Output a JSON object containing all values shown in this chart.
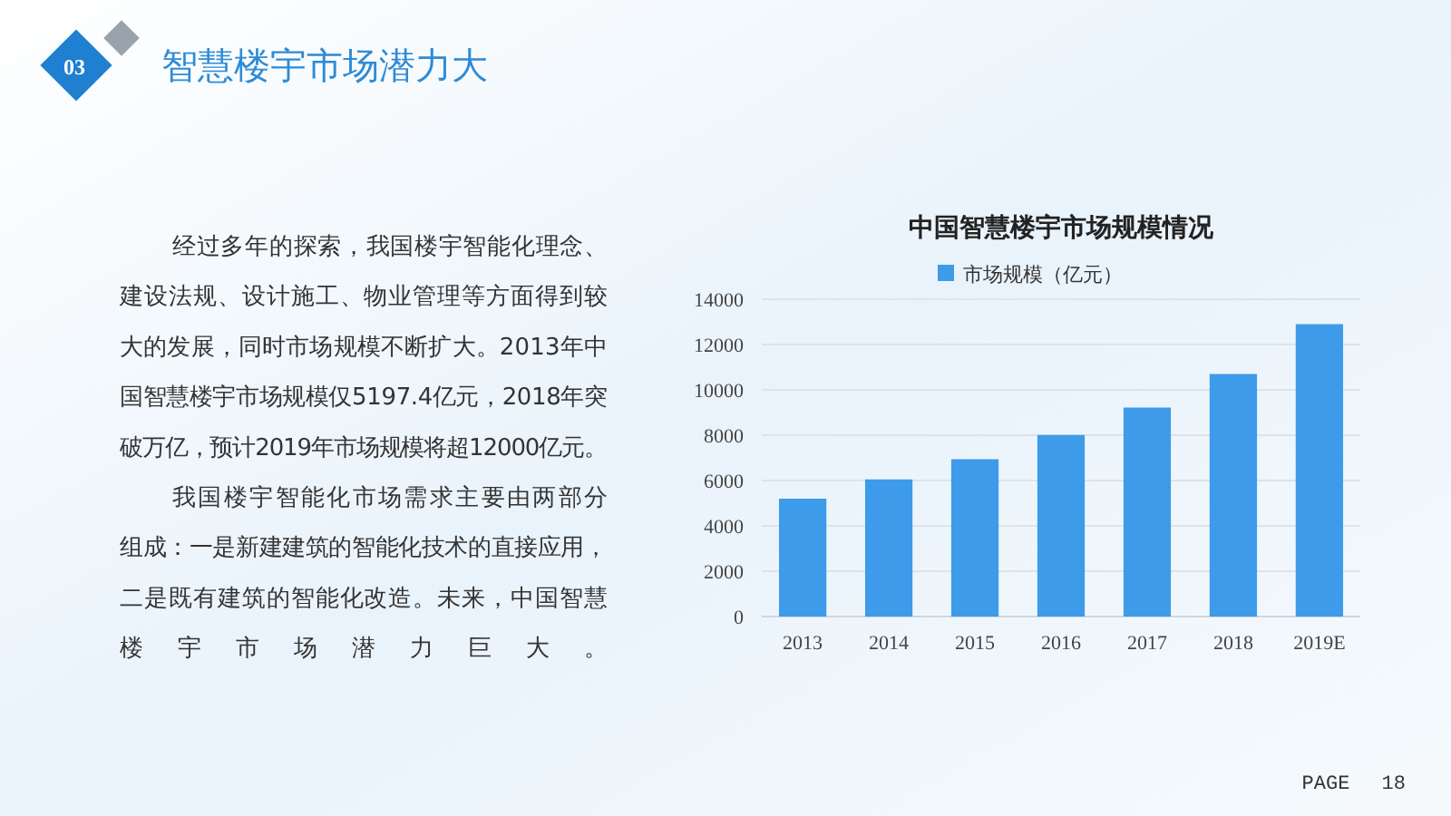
{
  "chart_data": {
    "type": "bar",
    "title": "中国智慧楼宇市场规模情况",
    "categories": [
      "2013",
      "2014",
      "2015",
      "2016",
      "2017",
      "2018",
      "2019E"
    ],
    "series": [
      {
        "name": "市场规模（亿元）",
        "color": "#3d9be9",
        "values": [
          5200,
          6050,
          6940,
          8010,
          9220,
          10700,
          12900
        ]
      }
    ],
    "ylim": [
      0,
      14000
    ],
    "yticks": [
      0,
      2000,
      4000,
      6000,
      8000,
      10000,
      12000,
      14000
    ],
    "grid": "y",
    "legend": "top",
    "annotations": [
      "03",
      "智慧楼宇市场潜力大",
      "经过多年的探索，我国楼宇智能化理念、",
      "建设法规、设计施工、物业管理等方面得到较",
      "大的发展，同时市场规模不断扩大。2013年中",
      "国智慧楼宇市场规模仅5197.4亿元，2018年突",
      "破万亿，预计2019年市场规模将超12000亿元。",
      "我国楼宇智能化市场需求主要由两部分",
      "组成：一是新建建筑的智能化技术的直接应用，",
      "二是既有建筑的智能化改造。未来，中国智慧",
      "楼宇市场潜力巨大。",
      "PAGE　 18"
    ]
  }
}
